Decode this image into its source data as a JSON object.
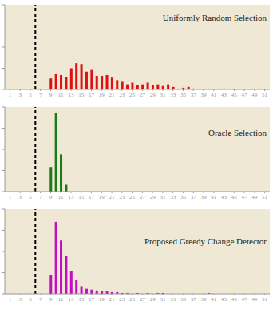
{
  "chart_data": [
    {
      "type": "bar",
      "title": "Uniformly Random Selection",
      "color": "#e01010",
      "x": [
        9,
        10,
        11,
        12,
        13,
        14,
        15,
        16,
        17,
        18,
        19,
        20,
        21,
        22,
        23,
        24,
        25,
        26,
        27,
        28,
        29,
        30,
        31,
        32,
        33,
        34,
        35,
        36,
        37,
        39,
        40,
        42,
        43
      ],
      "values": [
        0.13,
        0.18,
        0.17,
        0.15,
        0.25,
        0.31,
        0.3,
        0.21,
        0.23,
        0.16,
        0.16,
        0.17,
        0.14,
        0.11,
        0.09,
        0.06,
        0.08,
        0.05,
        0.06,
        0.08,
        0.05,
        0.06,
        0.04,
        0.06,
        0.03,
        0.01,
        0.02,
        0.03,
        0.01,
        0.01,
        0.01,
        0.01,
        0.01
      ],
      "vline": 6,
      "xlim": [
        0,
        52
      ],
      "xticks": [
        1,
        3,
        5,
        7,
        9,
        11,
        13,
        15,
        17,
        19,
        21,
        23,
        25,
        27,
        29,
        31,
        33,
        35,
        37,
        39,
        41,
        43,
        45,
        47,
        49,
        51
      ],
      "ylim": [
        0,
        1
      ],
      "yticks": [
        0,
        0.25,
        0.5,
        0.75,
        1
      ],
      "tick_labels": "x",
      "grid": false
    },
    {
      "type": "bar",
      "title": "Oracle Selection",
      "color": "#1a7a1a",
      "x": [
        9,
        10,
        11,
        12
      ],
      "values": [
        0.29,
        0.93,
        0.44,
        0.08
      ],
      "vline": 6,
      "xlim": [
        0,
        52
      ],
      "xticks": [
        1,
        3,
        5,
        7,
        9,
        11,
        13,
        15,
        17,
        19,
        21,
        23,
        25,
        27,
        29,
        31,
        33,
        35,
        37,
        39,
        41,
        43,
        45,
        47,
        49,
        51
      ],
      "ylim": [
        0,
        1
      ],
      "yticks": [
        0,
        0.25,
        0.5,
        0.75,
        1
      ],
      "tick_labels": "x",
      "grid": false
    },
    {
      "type": "bar",
      "title": "Proposed Greedy Change Detector",
      "color": "#c010c0",
      "x": [
        9,
        10,
        11,
        12,
        13,
        14,
        15,
        16,
        17,
        18,
        19,
        20,
        21,
        22,
        23,
        24,
        26,
        28,
        30,
        31,
        40
      ],
      "values": [
        0.22,
        0.85,
        0.63,
        0.45,
        0.27,
        0.16,
        0.09,
        0.06,
        0.05,
        0.04,
        0.03,
        0.03,
        0.02,
        0.02,
        0.01,
        0.01,
        0.01,
        0.01,
        0.01,
        0.01,
        0.01
      ],
      "vline": 6,
      "xlim": [
        0,
        52
      ],
      "xticks": [
        1,
        3,
        5,
        7,
        9,
        11,
        13,
        15,
        17,
        19,
        21,
        23,
        25,
        27,
        29,
        31,
        33,
        35,
        37,
        39,
        41,
        43,
        45,
        47,
        49,
        51
      ],
      "ylim": [
        0,
        1
      ],
      "yticks": [
        0,
        0.25,
        0.5,
        0.75,
        1
      ],
      "tick_labels": "x",
      "grid": false
    }
  ]
}
